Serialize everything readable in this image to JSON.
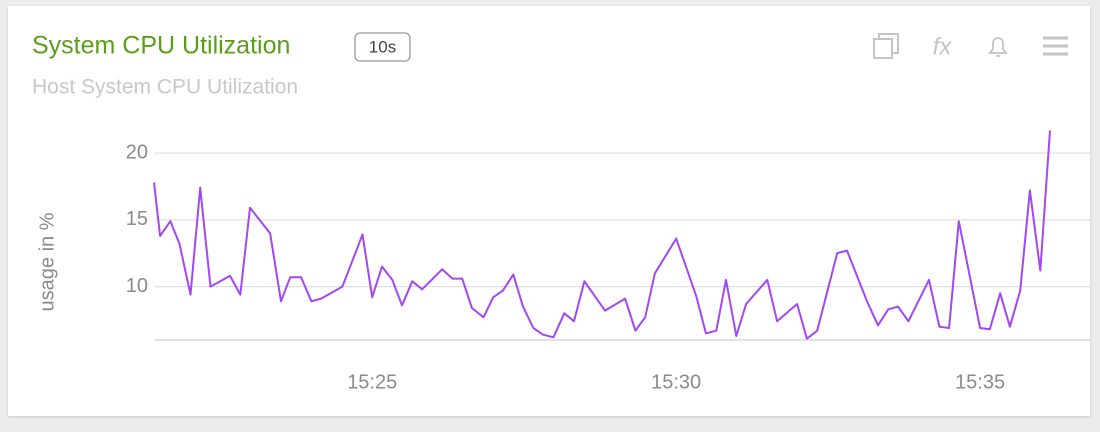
{
  "header": {
    "title": "System CPU Utilization",
    "badge": "10s",
    "subtitle": "Host System CPU Utilization",
    "function_icon": "fx"
  },
  "chart_data": {
    "type": "line",
    "ylabel": "usage in %",
    "x": [
      21.41,
      21.51,
      21.68,
      21.83,
      22.01,
      22.17,
      22.34,
      22.66,
      22.83,
      22.99,
      23.32,
      23.5,
      23.65,
      23.83,
      24.0,
      24.16,
      24.51,
      24.84,
      25.0,
      25.16,
      25.33,
      25.49,
      25.66,
      25.82,
      26.15,
      26.32,
      26.48,
      26.64,
      26.83,
      26.99,
      27.15,
      27.32,
      27.48,
      27.65,
      27.81,
      27.98,
      28.16,
      28.32,
      28.49,
      28.83,
      29.16,
      29.33,
      29.49,
      29.65,
      30.0,
      30.33,
      30.49,
      30.66,
      30.82,
      30.99,
      31.15,
      31.5,
      31.66,
      31.99,
      32.15,
      32.32,
      32.65,
      32.81,
      33.14,
      33.32,
      33.49,
      33.65,
      33.82,
      34.16,
      34.33,
      34.49,
      34.65,
      35.0,
      35.16,
      35.33,
      35.49,
      35.66,
      35.82,
      35.99,
      36.15
    ],
    "series": [
      {
        "name": "usage",
        "color": "#a347f5",
        "values": [
          17.8,
          13.8,
          14.9,
          13.2,
          9.4,
          17.4,
          10.0,
          10.8,
          9.4,
          15.9,
          14.0,
          8.9,
          10.7,
          10.7,
          8.9,
          9.1,
          10.0,
          13.9,
          9.2,
          11.5,
          10.5,
          8.6,
          10.4,
          9.8,
          11.3,
          10.6,
          10.6,
          8.4,
          7.7,
          9.2,
          9.7,
          10.9,
          8.5,
          6.9,
          6.4,
          6.2,
          8.0,
          7.4,
          10.4,
          8.2,
          9.1,
          6.7,
          7.7,
          11.0,
          13.6,
          9.3,
          6.5,
          6.7,
          10.5,
          6.3,
          8.7,
          10.5,
          7.4,
          8.7,
          6.1,
          6.7,
          12.5,
          12.7,
          8.9,
          7.1,
          8.3,
          8.5,
          7.4,
          10.5,
          7.0,
          6.9,
          14.9,
          6.9,
          6.8,
          9.5,
          7.0,
          9.7,
          17.2,
          11.2,
          21.7
        ]
      }
    ],
    "xlim": [
      21.41,
      36.15
    ],
    "xticks": [
      {
        "value": 25,
        "label": "15:25"
      },
      {
        "value": 30,
        "label": "15:30"
      },
      {
        "value": 35,
        "label": "15:35"
      }
    ],
    "ylim": [
      6,
      22.5
    ],
    "yticks": [
      10,
      15,
      20
    ],
    "grid": true
  }
}
